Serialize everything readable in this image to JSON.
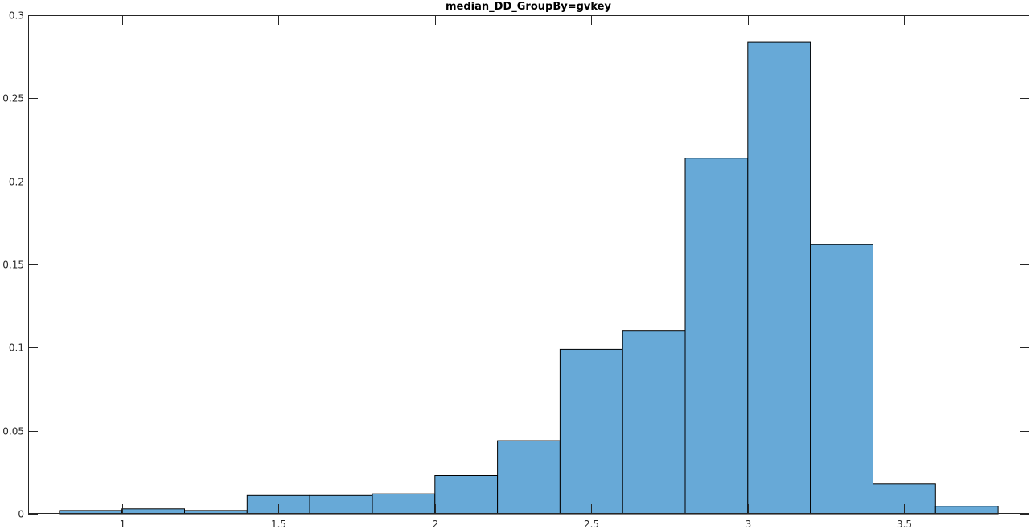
{
  "chart_data": {
    "type": "bar",
    "title": "median_DD_GroupBy=gvkey",
    "xlabel": "",
    "ylabel": "",
    "xlim": [
      0.7,
      3.9
    ],
    "ylim": [
      0,
      0.3
    ],
    "bin_edges": [
      0.8,
      1.0,
      1.2,
      1.4,
      1.6,
      1.8,
      2.0,
      2.2,
      2.4,
      2.6,
      2.8,
      3.0,
      3.2,
      3.4,
      3.6,
      3.8
    ],
    "values": [
      0.002,
      0.003,
      0.002,
      0.011,
      0.011,
      0.012,
      0.023,
      0.044,
      0.099,
      0.11,
      0.214,
      0.284,
      0.162,
      0.018,
      0.0045
    ],
    "xticks": [
      1,
      1.5,
      2,
      2.5,
      3,
      3.5
    ],
    "xtick_labels": [
      "1",
      "1.5",
      "2",
      "2.5",
      "3",
      "3.5"
    ],
    "yticks": [
      0,
      0.05,
      0.1,
      0.15,
      0.2,
      0.25,
      0.3
    ],
    "ytick_labels": [
      "0",
      "0.05",
      "0.1",
      "0.15",
      "0.2",
      "0.25",
      "0.3"
    ],
    "grid": false,
    "bar_color": "#67a9d7",
    "edge_color": "#000000"
  }
}
